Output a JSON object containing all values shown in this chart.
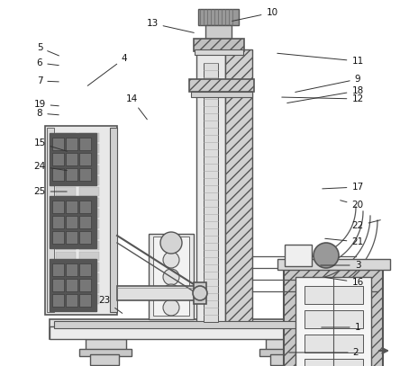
{
  "bg_color": "#ffffff",
  "lc": "#555555",
  "dc": "#333333",
  "figsize": [
    4.44,
    4.07
  ],
  "dpi": 100,
  "label_positions": {
    "1": [
      0.895,
      0.895,
      0.8,
      0.895
    ],
    "2": [
      0.88,
      0.96,
      0.7,
      0.955
    ],
    "3": [
      0.88,
      0.53,
      0.77,
      0.53
    ],
    "4": [
      0.31,
      0.16,
      0.205,
      0.24
    ],
    "5": [
      0.1,
      0.13,
      0.155,
      0.155
    ],
    "6": [
      0.1,
      0.17,
      0.155,
      0.18
    ],
    "7": [
      0.1,
      0.22,
      0.155,
      0.228
    ],
    "8": [
      0.1,
      0.31,
      0.155,
      0.318
    ],
    "9": [
      0.89,
      0.215,
      0.72,
      0.253
    ],
    "10": [
      0.68,
      0.035,
      0.5,
      0.06
    ],
    "11": [
      0.89,
      0.168,
      0.66,
      0.145
    ],
    "12": [
      0.89,
      0.27,
      0.68,
      0.265
    ],
    "13": [
      0.38,
      0.065,
      0.455,
      0.09
    ],
    "14": [
      0.33,
      0.27,
      0.365,
      0.33
    ],
    "15": [
      0.1,
      0.39,
      0.175,
      0.415
    ],
    "16": [
      0.89,
      0.77,
      0.8,
      0.758
    ],
    "17": [
      0.89,
      0.51,
      0.77,
      0.505
    ],
    "18": [
      0.89,
      0.248,
      0.7,
      0.242
    ],
    "19": [
      0.1,
      0.285,
      0.155,
      0.29
    ],
    "20": [
      0.89,
      0.56,
      0.76,
      0.545
    ],
    "21": [
      0.89,
      0.66,
      0.8,
      0.65
    ],
    "22": [
      0.89,
      0.615,
      0.82,
      0.6
    ],
    "23": [
      0.26,
      0.82,
      0.295,
      0.858
    ],
    "24": [
      0.1,
      0.455,
      0.175,
      0.468
    ],
    "25": [
      0.1,
      0.51,
      0.175,
      0.522
    ]
  }
}
